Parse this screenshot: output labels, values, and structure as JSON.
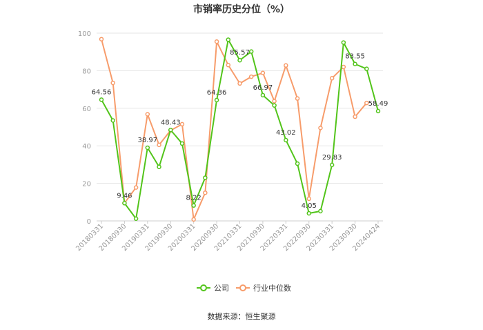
{
  "chart_data": {
    "type": "line",
    "title": "市销率历史分位（%）",
    "source": "数据来源：恒生聚源",
    "ylim": [
      0,
      100
    ],
    "yticks": [
      0,
      20,
      40,
      60,
      80,
      100
    ],
    "grid": true,
    "legend_position": "bottom-center",
    "x_tick_labels": [
      "20180331",
      "20180930",
      "20190331",
      "20190930",
      "20200331",
      "20200930",
      "20210331",
      "20210930",
      "20220331",
      "20220930",
      "20230331",
      "20230930",
      "20240424"
    ],
    "x_tick_indices": [
      0,
      2,
      4,
      6,
      8,
      10,
      12,
      14,
      16,
      18,
      20,
      22,
      24
    ],
    "point_count": 25,
    "series": [
      {
        "name": "公司",
        "color": "#52c41a",
        "values": [
          64.56,
          53.5,
          9.46,
          1.2,
          38.97,
          28.8,
          48.43,
          41.2,
          8.22,
          23.0,
          64.36,
          96.5,
          85.57,
          90.2,
          66.97,
          61.5,
          43.02,
          30.5,
          4.05,
          5.2,
          29.83,
          95.0,
          83.55,
          81.0,
          58.49
        ],
        "data_labels": [
          {
            "index": 0,
            "text": "64.56"
          },
          {
            "index": 2,
            "text": "9.46"
          },
          {
            "index": 4,
            "text": "38.97"
          },
          {
            "index": 6,
            "text": "48.43"
          },
          {
            "index": 8,
            "text": "8.22"
          },
          {
            "index": 10,
            "text": "64.36"
          },
          {
            "index": 12,
            "text": "85.57"
          },
          {
            "index": 14,
            "text": "66.97"
          },
          {
            "index": 16,
            "text": "43.02"
          },
          {
            "index": 18,
            "text": "4.05"
          },
          {
            "index": 20,
            "text": "29.83"
          },
          {
            "index": 22,
            "text": "83.55"
          },
          {
            "index": 24,
            "text": "58.49"
          }
        ]
      },
      {
        "name": "行业中位数",
        "color": "#f79c6b",
        "values": [
          96.8,
          73.5,
          9.5,
          17.8,
          56.8,
          40.5,
          48.2,
          51.5,
          0.8,
          15.0,
          95.5,
          83.0,
          73.2,
          76.8,
          78.8,
          63.8,
          82.8,
          65.2,
          11.8,
          49.5,
          76.0,
          82.0,
          55.5,
          62.8,
          null
        ]
      }
    ]
  }
}
